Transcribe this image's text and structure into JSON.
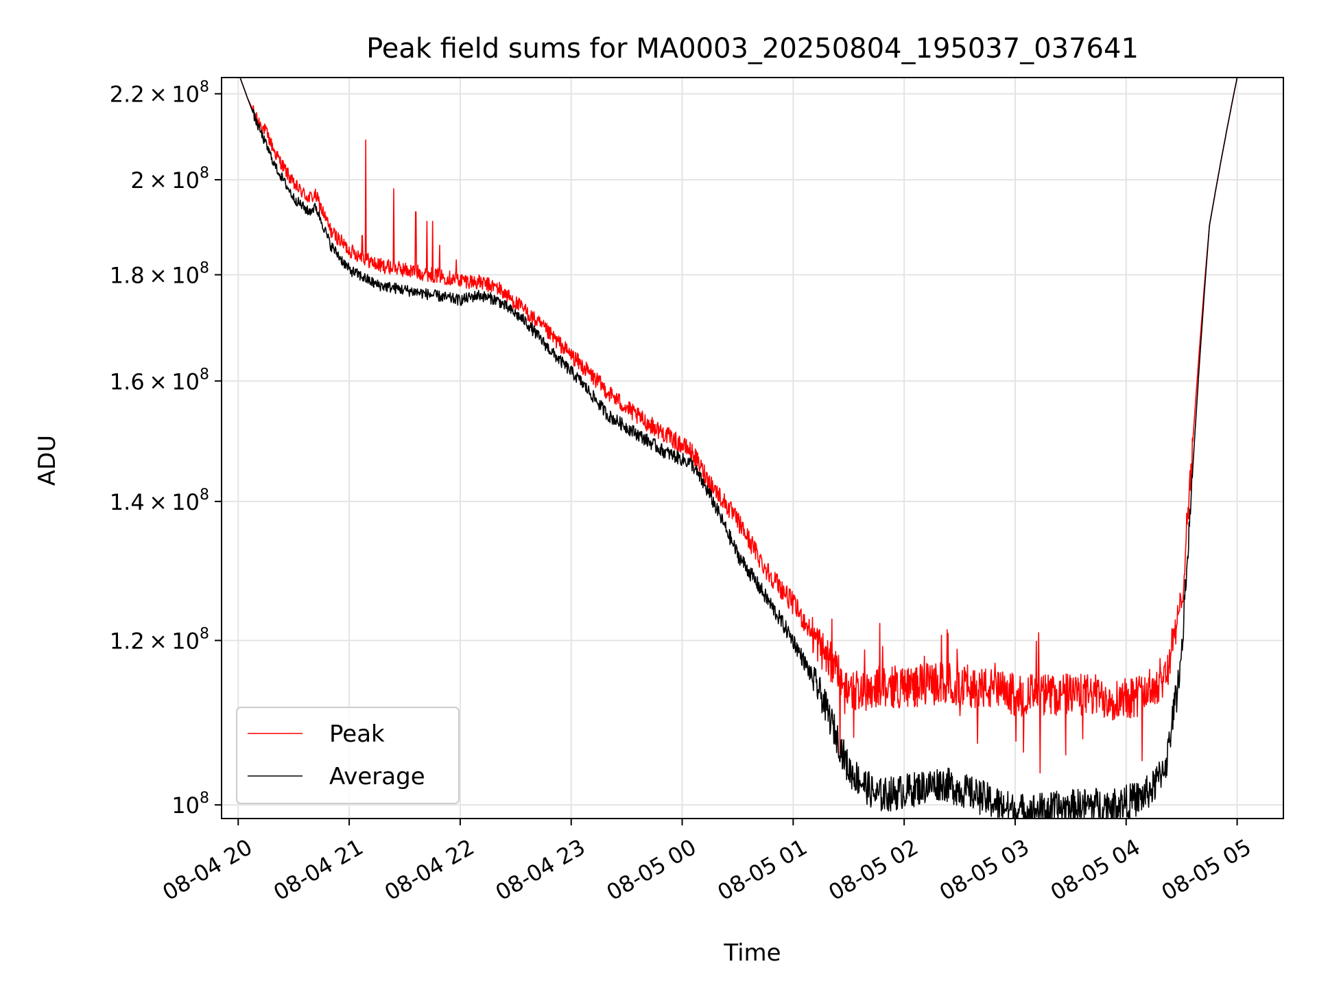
{
  "chart_data": {
    "type": "line",
    "title": "Peak field sums for MA0003_20250804_195037_037641",
    "xlabel": "Time",
    "ylabel": "ADU",
    "yscale": "log",
    "xlim": [
      "2025-08-04 19:51",
      "2025-08-05 05:25"
    ],
    "ylim": [
      98500000,
      224000000
    ],
    "grid": true,
    "legend_position": "lower-left",
    "x_ticks": [
      {
        "t": "2025-08-04 20:00",
        "label": "08-04 20"
      },
      {
        "t": "2025-08-04 21:00",
        "label": "08-04 21"
      },
      {
        "t": "2025-08-04 22:00",
        "label": "08-04 22"
      },
      {
        "t": "2025-08-04 23:00",
        "label": "08-04 23"
      },
      {
        "t": "2025-08-05 00:00",
        "label": "08-05 00"
      },
      {
        "t": "2025-08-05 01:00",
        "label": "08-05 01"
      },
      {
        "t": "2025-08-05 02:00",
        "label": "08-05 02"
      },
      {
        "t": "2025-08-05 03:00",
        "label": "08-05 03"
      },
      {
        "t": "2025-08-05 04:00",
        "label": "08-05 04"
      },
      {
        "t": "2025-08-05 05:00",
        "label": "08-05 05"
      }
    ],
    "y_ticks": [
      {
        "value": 100000000,
        "mant": "",
        "exp": "8",
        "base": "10"
      },
      {
        "value": 120000000,
        "mant": "1.2",
        "exp": "8",
        "base": "10"
      },
      {
        "value": 140000000,
        "mant": "1.4",
        "exp": "8",
        "base": "10"
      },
      {
        "value": 160000000,
        "mant": "1.6",
        "exp": "8",
        "base": "10"
      },
      {
        "value": 180000000,
        "mant": "1.8",
        "exp": "8",
        "base": "10"
      },
      {
        "value": 200000000,
        "mant": "2",
        "exp": "8",
        "base": "10"
      },
      {
        "value": 220000000,
        "mant": "2.2",
        "exp": "8",
        "base": "10"
      }
    ],
    "series": [
      {
        "name": "Peak",
        "color": "#ff0000",
        "noise": 1500000,
        "x": [
          "2025-08-04 20:01",
          "2025-08-04 20:05",
          "2025-08-04 20:10",
          "2025-08-04 20:15",
          "2025-08-04 20:20",
          "2025-08-04 20:30",
          "2025-08-04 20:38",
          "2025-08-04 20:42",
          "2025-08-04 20:50",
          "2025-08-04 21:00",
          "2025-08-04 21:15",
          "2025-08-04 21:30",
          "2025-08-04 21:45",
          "2025-08-04 22:00",
          "2025-08-04 22:10",
          "2025-08-04 22:20",
          "2025-08-04 22:35",
          "2025-08-04 22:50",
          "2025-08-04 23:05",
          "2025-08-04 23:20",
          "2025-08-04 23:35",
          "2025-08-04 23:50",
          "2025-08-05 00:05",
          "2025-08-05 00:15",
          "2025-08-05 00:30",
          "2025-08-05 00:45",
          "2025-08-05 01:00",
          "2025-08-05 01:15",
          "2025-08-05 01:30",
          "2025-08-05 01:45",
          "2025-08-05 02:00",
          "2025-08-05 02:20",
          "2025-08-05 02:40",
          "2025-08-05 03:00",
          "2025-08-05 03:20",
          "2025-08-05 03:40",
          "2025-08-05 03:55",
          "2025-08-05 04:08",
          "2025-08-05 04:15",
          "2025-08-05 04:22",
          "2025-08-05 04:30",
          "2025-08-05 04:35",
          "2025-08-05 04:45",
          "2025-08-05 05:00",
          "2025-08-05 05:25"
        ],
        "y": [
          224000000,
          219000000,
          214000000,
          211000000,
          206000000,
          199000000,
          196000000,
          196500000,
          189000000,
          185000000,
          182000000,
          181000000,
          180000000,
          179000000,
          178500000,
          177500000,
          173000000,
          168000000,
          163000000,
          158000000,
          154000000,
          151000000,
          148000000,
          143000000,
          137000000,
          130000000,
          125000000,
          119000000,
          113500000,
          114000000,
          114000000,
          114500000,
          114000000,
          113000000,
          113000000,
          113000000,
          112500000,
          113000000,
          114000000,
          116000000,
          125000000,
          145000000,
          190000000,
          224000000,
          224000000
        ],
        "spikes": [
          {
            "t": "2025-08-04 21:09",
            "value": 209000000
          },
          {
            "t": "2025-08-04 21:07",
            "value": 188000000
          },
          {
            "t": "2025-08-04 21:24",
            "value": 198000000
          },
          {
            "t": "2025-08-04 21:36",
            "value": 193000000
          },
          {
            "t": "2025-08-04 21:42",
            "value": 191000000
          },
          {
            "t": "2025-08-04 21:45",
            "value": 191000000
          },
          {
            "t": "2025-08-04 21:49",
            "value": 186000000
          },
          {
            "t": "2025-08-04 21:58",
            "value": 183000000
          }
        ]
      },
      {
        "name": "Average",
        "color": "#000000",
        "noise": 1100000,
        "x": [
          "2025-08-04 20:01",
          "2025-08-04 20:05",
          "2025-08-04 20:10",
          "2025-08-04 20:15",
          "2025-08-04 20:20",
          "2025-08-04 20:30",
          "2025-08-04 20:38",
          "2025-08-04 20:42",
          "2025-08-04 20:50",
          "2025-08-04 21:00",
          "2025-08-04 21:15",
          "2025-08-04 21:30",
          "2025-08-04 21:45",
          "2025-08-04 22:00",
          "2025-08-04 22:10",
          "2025-08-04 22:20",
          "2025-08-04 22:35",
          "2025-08-04 22:50",
          "2025-08-04 23:05",
          "2025-08-04 23:20",
          "2025-08-04 23:35",
          "2025-08-04 23:50",
          "2025-08-05 00:05",
          "2025-08-05 00:15",
          "2025-08-05 00:30",
          "2025-08-05 00:45",
          "2025-08-05 01:00",
          "2025-08-05 01:15",
          "2025-08-05 01:30",
          "2025-08-05 01:45",
          "2025-08-05 02:00",
          "2025-08-05 02:20",
          "2025-08-05 02:40",
          "2025-08-05 03:00",
          "2025-08-05 03:20",
          "2025-08-05 03:40",
          "2025-08-05 03:55",
          "2025-08-05 04:08",
          "2025-08-05 04:15",
          "2025-08-05 04:22",
          "2025-08-05 04:30",
          "2025-08-05 04:35",
          "2025-08-05 04:45",
          "2025-08-05 05:00",
          "2025-08-05 05:25"
        ],
        "y": [
          224000000,
          219000000,
          213000000,
          208000000,
          203000000,
          196000000,
          193000000,
          194000000,
          186000000,
          181000000,
          178000000,
          177000000,
          176000000,
          175000000,
          176000000,
          175000000,
          171000000,
          165000000,
          160000000,
          154000000,
          151000000,
          148000000,
          146000000,
          141000000,
          132000000,
          126000000,
          120000000,
          113000000,
          104000000,
          101000000,
          101500000,
          102500000,
          101000000,
          99300000,
          99500000,
          100000000,
          100000000,
          100800000,
          102000000,
          105000000,
          118000000,
          140000000,
          190000000,
          224000000,
          224000000
        ]
      }
    ]
  }
}
